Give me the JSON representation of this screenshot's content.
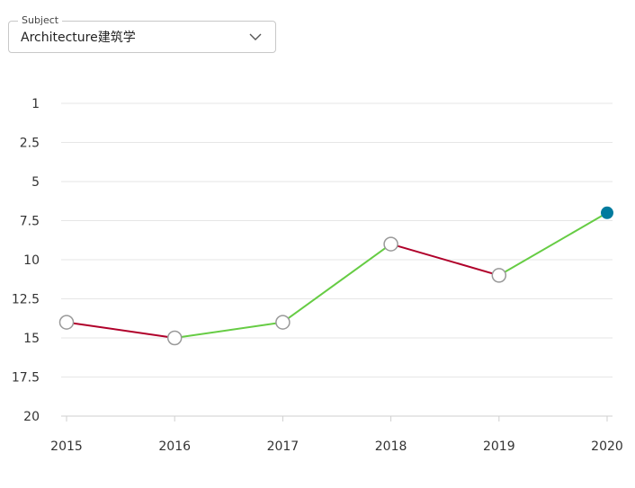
{
  "subject": {
    "label": "Subject",
    "value": "Architecture建筑学"
  },
  "icons": {
    "dropdown": "chevron-down-icon"
  },
  "colors": {
    "up": "#66cc44",
    "down": "#b0002a",
    "marker_fill": "#ffffff",
    "marker_stroke": "#999999",
    "current_marker": "#007b9e",
    "grid": "#e6e6e6"
  },
  "chart_data": {
    "type": "line",
    "x": [
      "2015",
      "2016",
      "2017",
      "2018",
      "2019",
      "2020"
    ],
    "values": [
      14,
      15,
      14,
      9,
      11,
      7
    ],
    "y_ticks": [
      "1",
      "2.5",
      "5",
      "7.5",
      "10",
      "12.5",
      "15",
      "17.5",
      "20"
    ],
    "ylim": [
      0,
      20
    ],
    "y_inverted": true,
    "grid": true,
    "title": "",
    "xlabel": "",
    "ylabel": ""
  }
}
